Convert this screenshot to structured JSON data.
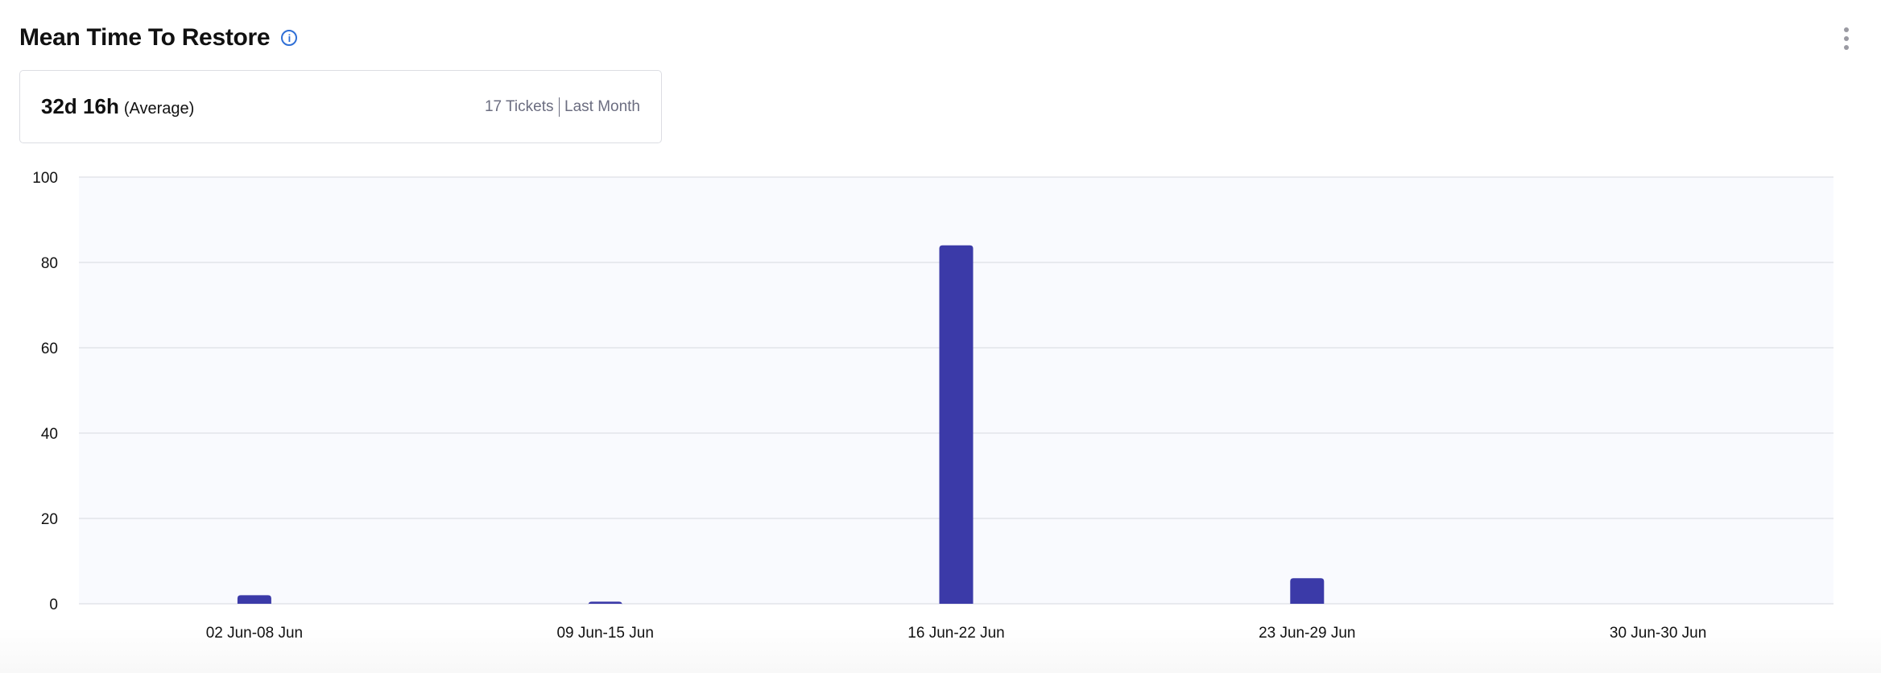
{
  "header": {
    "title": "Mean Time To Restore",
    "info_icon": "info-icon",
    "menu_icon": "kebab-menu-icon"
  },
  "summary": {
    "value": "32d 16h",
    "qualifier": "(Average)",
    "tickets": "17 Tickets",
    "period": "Last Month"
  },
  "chart_data": {
    "type": "bar",
    "categories": [
      "02 Jun-08 Jun",
      "09 Jun-15 Jun",
      "16 Jun-22 Jun",
      "23 Jun-29 Jun",
      "30 Jun-30 Jun"
    ],
    "values": [
      2,
      0.5,
      84,
      6,
      0
    ],
    "ylim": [
      0,
      100
    ],
    "yticks": [
      0,
      20,
      40,
      60,
      80,
      100
    ],
    "grid": true,
    "bar_color": "#3b3aa8",
    "plot_bg": "#f9fafe"
  }
}
